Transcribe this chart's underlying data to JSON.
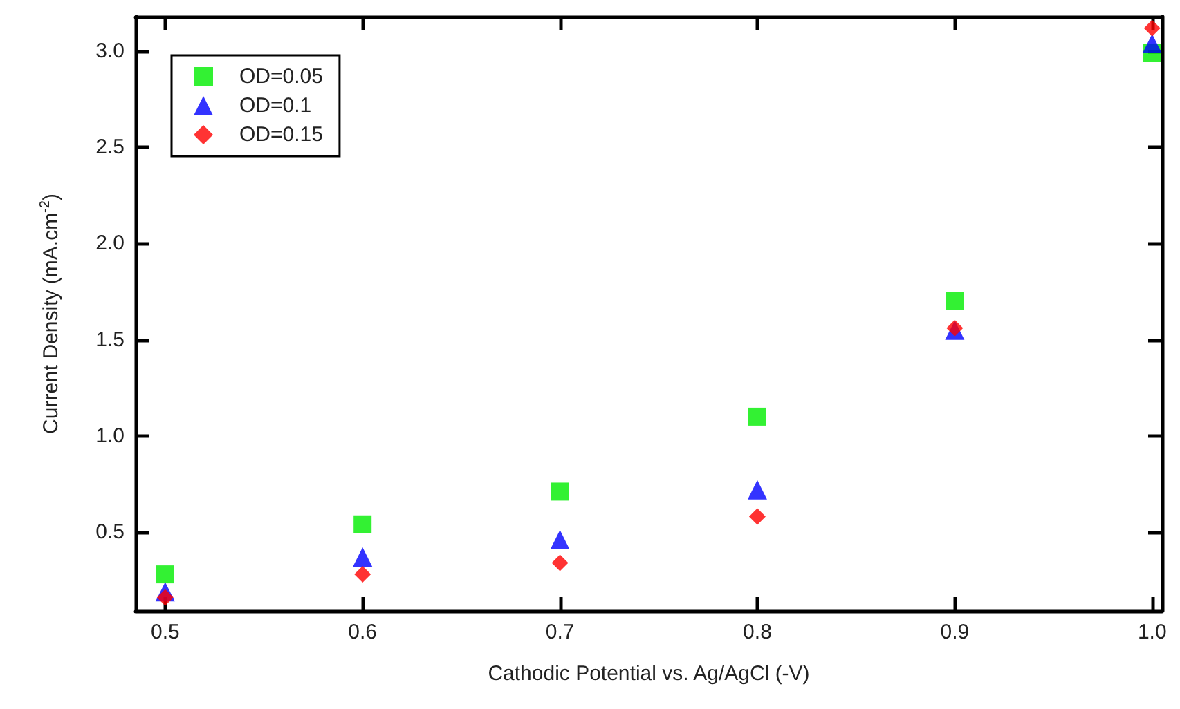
{
  "chart_data": {
    "type": "scatter",
    "xlabel": "Cathodic Potential vs. Ag/AgCl (-V)",
    "ylabel": "Current Density (mA.cm$^{-2}$)",
    "x": [
      0.5,
      0.6,
      0.7,
      0.8,
      0.9,
      1.0
    ],
    "series": [
      {
        "name": "OD=0.05",
        "color": "#00ee00",
        "marker": "square",
        "values": [
          0.28,
          0.54,
          0.71,
          1.1,
          1.7,
          2.99
        ]
      },
      {
        "name": "OD=0.1",
        "color": "#0000ff",
        "marker": "triangle",
        "values": [
          0.19,
          0.37,
          0.46,
          0.72,
          1.55,
          3.04
        ]
      },
      {
        "name": "OD=0.15",
        "color": "#ff0000",
        "marker": "diamond",
        "values": [
          0.16,
          0.28,
          0.34,
          0.58,
          1.56,
          3.12
        ]
      }
    ],
    "xlim": [
      0.485,
      1.005
    ],
    "xticks": [
      0.5,
      0.6,
      0.7,
      0.8,
      0.9,
      {
        "value": 1.0,
        "label": "1.0"
      }
    ],
    "ylim": [
      0.09,
      3.18
    ],
    "yticks": [
      0.5,
      {
        "value": 1.0,
        "label": "1.0"
      },
      1.5,
      {
        "value": 2.0,
        "label": "2.0"
      },
      2.5,
      {
        "value": 3.0,
        "label": "3.0"
      }
    ],
    "grid": false,
    "legend": "top left"
  }
}
